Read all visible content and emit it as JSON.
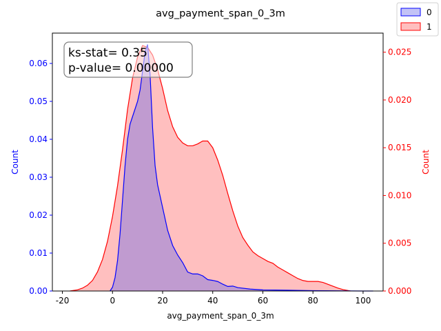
{
  "chart_data": {
    "type": "area",
    "title": "avg_payment_span_0_3m",
    "xlabel": "avg_payment_span_0_3m",
    "ylabel_left": "Count",
    "ylabel_right": "Count",
    "xlim": [
      -24,
      108
    ],
    "ylim_left": [
      0,
      0.068
    ],
    "ylim_right": [
      0,
      0.027
    ],
    "x_ticks": [
      -20,
      0,
      20,
      40,
      60,
      80,
      100
    ],
    "y_ticks_left": [
      0.0,
      0.01,
      0.02,
      0.03,
      0.04,
      0.05,
      0.06
    ],
    "y_ticks_right": [
      0.0,
      0.005,
      0.01,
      0.015,
      0.02,
      0.025
    ],
    "legend_position": "top-right",
    "annotation": {
      "line1": "ks-stat= 0.35",
      "line2": "p-value= 0.00000"
    },
    "colors": {
      "series0_line": "#0000ff",
      "series0_fill": "#6a6ae8",
      "series1_line": "#ff0000",
      "series1_fill": "#ff7f7f",
      "left_axis": "#0000ff",
      "right_axis": "#ff0000"
    },
    "series": [
      {
        "name": "0",
        "axis": "left",
        "x": [
          -1,
          0,
          1,
          2,
          3,
          4,
          5,
          6,
          7,
          8,
          9,
          10,
          11,
          12,
          13,
          14,
          15,
          16,
          17,
          18,
          20,
          22,
          24,
          26,
          28,
          30,
          32,
          34,
          36,
          38,
          40,
          42,
          44,
          46,
          48,
          50,
          55,
          60,
          70,
          80,
          90,
          100,
          104
        ],
        "y": [
          0.0,
          0.001,
          0.0035,
          0.008,
          0.015,
          0.024,
          0.033,
          0.04,
          0.044,
          0.046,
          0.048,
          0.05,
          0.053,
          0.058,
          0.063,
          0.065,
          0.057,
          0.043,
          0.033,
          0.028,
          0.022,
          0.016,
          0.012,
          0.0095,
          0.0075,
          0.005,
          0.0045,
          0.0045,
          0.004,
          0.003,
          0.0028,
          0.0025,
          0.0018,
          0.0012,
          0.0013,
          0.0009,
          0.0005,
          0.0003,
          0.0002,
          0.0001,
          5e-05,
          0.0,
          0.0
        ]
      },
      {
        "name": "1",
        "axis": "right",
        "x": [
          -17,
          -14,
          -12,
          -10,
          -8,
          -6,
          -4,
          -2,
          0,
          2,
          4,
          6,
          8,
          10,
          12,
          14,
          16,
          18,
          20,
          22,
          24,
          26,
          28,
          30,
          32,
          34,
          36,
          38,
          40,
          42,
          44,
          46,
          48,
          50,
          52,
          54,
          56,
          58,
          60,
          62,
          64,
          66,
          68,
          70,
          72,
          74,
          76,
          78,
          80,
          82,
          84,
          86,
          88,
          90,
          92,
          95
        ],
        "y": [
          0.0,
          0.00012,
          0.0003,
          0.0006,
          0.0011,
          0.002,
          0.0033,
          0.0052,
          0.0078,
          0.011,
          0.0148,
          0.019,
          0.0223,
          0.0245,
          0.0257,
          0.0255,
          0.0247,
          0.0232,
          0.0212,
          0.0189,
          0.0172,
          0.0161,
          0.0155,
          0.0152,
          0.0152,
          0.0154,
          0.0157,
          0.0157,
          0.015,
          0.0137,
          0.0121,
          0.0102,
          0.0084,
          0.0068,
          0.0056,
          0.0048,
          0.0041,
          0.0037,
          0.0034,
          0.0031,
          0.0029,
          0.0025,
          0.0022,
          0.0019,
          0.0016,
          0.0013,
          0.0011,
          0.001,
          0.001,
          0.001,
          0.0009,
          0.0007,
          0.0005,
          0.0003,
          0.00015,
          0.0
        ]
      }
    ]
  }
}
